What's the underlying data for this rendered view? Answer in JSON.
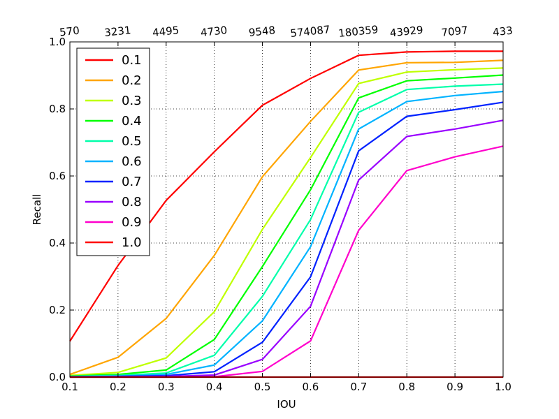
{
  "chart_data": {
    "type": "line",
    "xlabel": "IOU",
    "ylabel": "Recall",
    "xlim": [
      0.1,
      1.0
    ],
    "ylim": [
      0.0,
      1.0
    ],
    "grid": true,
    "legend_position": "top-left",
    "x": [
      0.1,
      0.2,
      0.3,
      0.4,
      0.5,
      0.6,
      0.7,
      0.8,
      0.9,
      1.0
    ],
    "x_tick_labels": [
      "0.1",
      "0.2",
      "0.3",
      "0.4",
      "0.5",
      "0.6",
      "0.7",
      "0.8",
      "0.9",
      "1.0"
    ],
    "y_tick_labels": [
      "0.0",
      "0.2",
      "0.4",
      "0.6",
      "0.8",
      "1.0"
    ],
    "y_ticks": [
      0.0,
      0.2,
      0.4,
      0.6,
      0.8,
      1.0
    ],
    "top_tick_labels": [
      "570",
      "3231",
      "4495",
      "4730",
      "9548",
      "574087",
      "180359",
      "43929",
      "7097",
      "433"
    ],
    "series": [
      {
        "name": "0.1",
        "color": "#ff0000",
        "values": [
          0.107,
          0.333,
          0.527,
          0.672,
          0.811,
          0.891,
          0.96,
          0.97,
          0.972,
          0.972
        ]
      },
      {
        "name": "0.2",
        "color": "#ffa500",
        "values": [
          0.008,
          0.059,
          0.175,
          0.363,
          0.598,
          0.763,
          0.916,
          0.938,
          0.939,
          0.945
        ]
      },
      {
        "name": "0.3",
        "color": "#bfff00",
        "values": [
          0.005,
          0.014,
          0.057,
          0.195,
          0.441,
          0.655,
          0.876,
          0.91,
          0.917,
          0.922
        ]
      },
      {
        "name": "0.4",
        "color": "#00ff00",
        "values": [
          0.003,
          0.008,
          0.021,
          0.112,
          0.33,
          0.559,
          0.833,
          0.884,
          0.892,
          0.901
        ]
      },
      {
        "name": "0.5",
        "color": "#00ffaa",
        "values": [
          0.002,
          0.005,
          0.012,
          0.065,
          0.241,
          0.47,
          0.79,
          0.858,
          0.868,
          0.874
        ]
      },
      {
        "name": "0.6",
        "color": "#00b3ff",
        "values": [
          0.001,
          0.003,
          0.008,
          0.036,
          0.168,
          0.389,
          0.74,
          0.822,
          0.84,
          0.852
        ]
      },
      {
        "name": "0.7",
        "color": "#0022ff",
        "values": [
          0.001,
          0.002,
          0.004,
          0.016,
          0.104,
          0.299,
          0.675,
          0.778,
          0.798,
          0.82
        ]
      },
      {
        "name": "0.8",
        "color": "#9900ff",
        "values": [
          0.0,
          0.001,
          0.002,
          0.006,
          0.053,
          0.211,
          0.588,
          0.718,
          0.74,
          0.766
        ]
      },
      {
        "name": "0.9",
        "color": "#ff00cc",
        "values": [
          0.0,
          0.0,
          0.0,
          0.001,
          0.017,
          0.108,
          0.438,
          0.616,
          0.657,
          0.689
        ]
      },
      {
        "name": "1.0",
        "color": "#ff0000",
        "values": [
          0.0,
          0.0,
          0.0,
          0.0,
          0.0,
          0.0,
          0.0,
          0.0,
          0.0,
          0.0
        ]
      }
    ]
  }
}
